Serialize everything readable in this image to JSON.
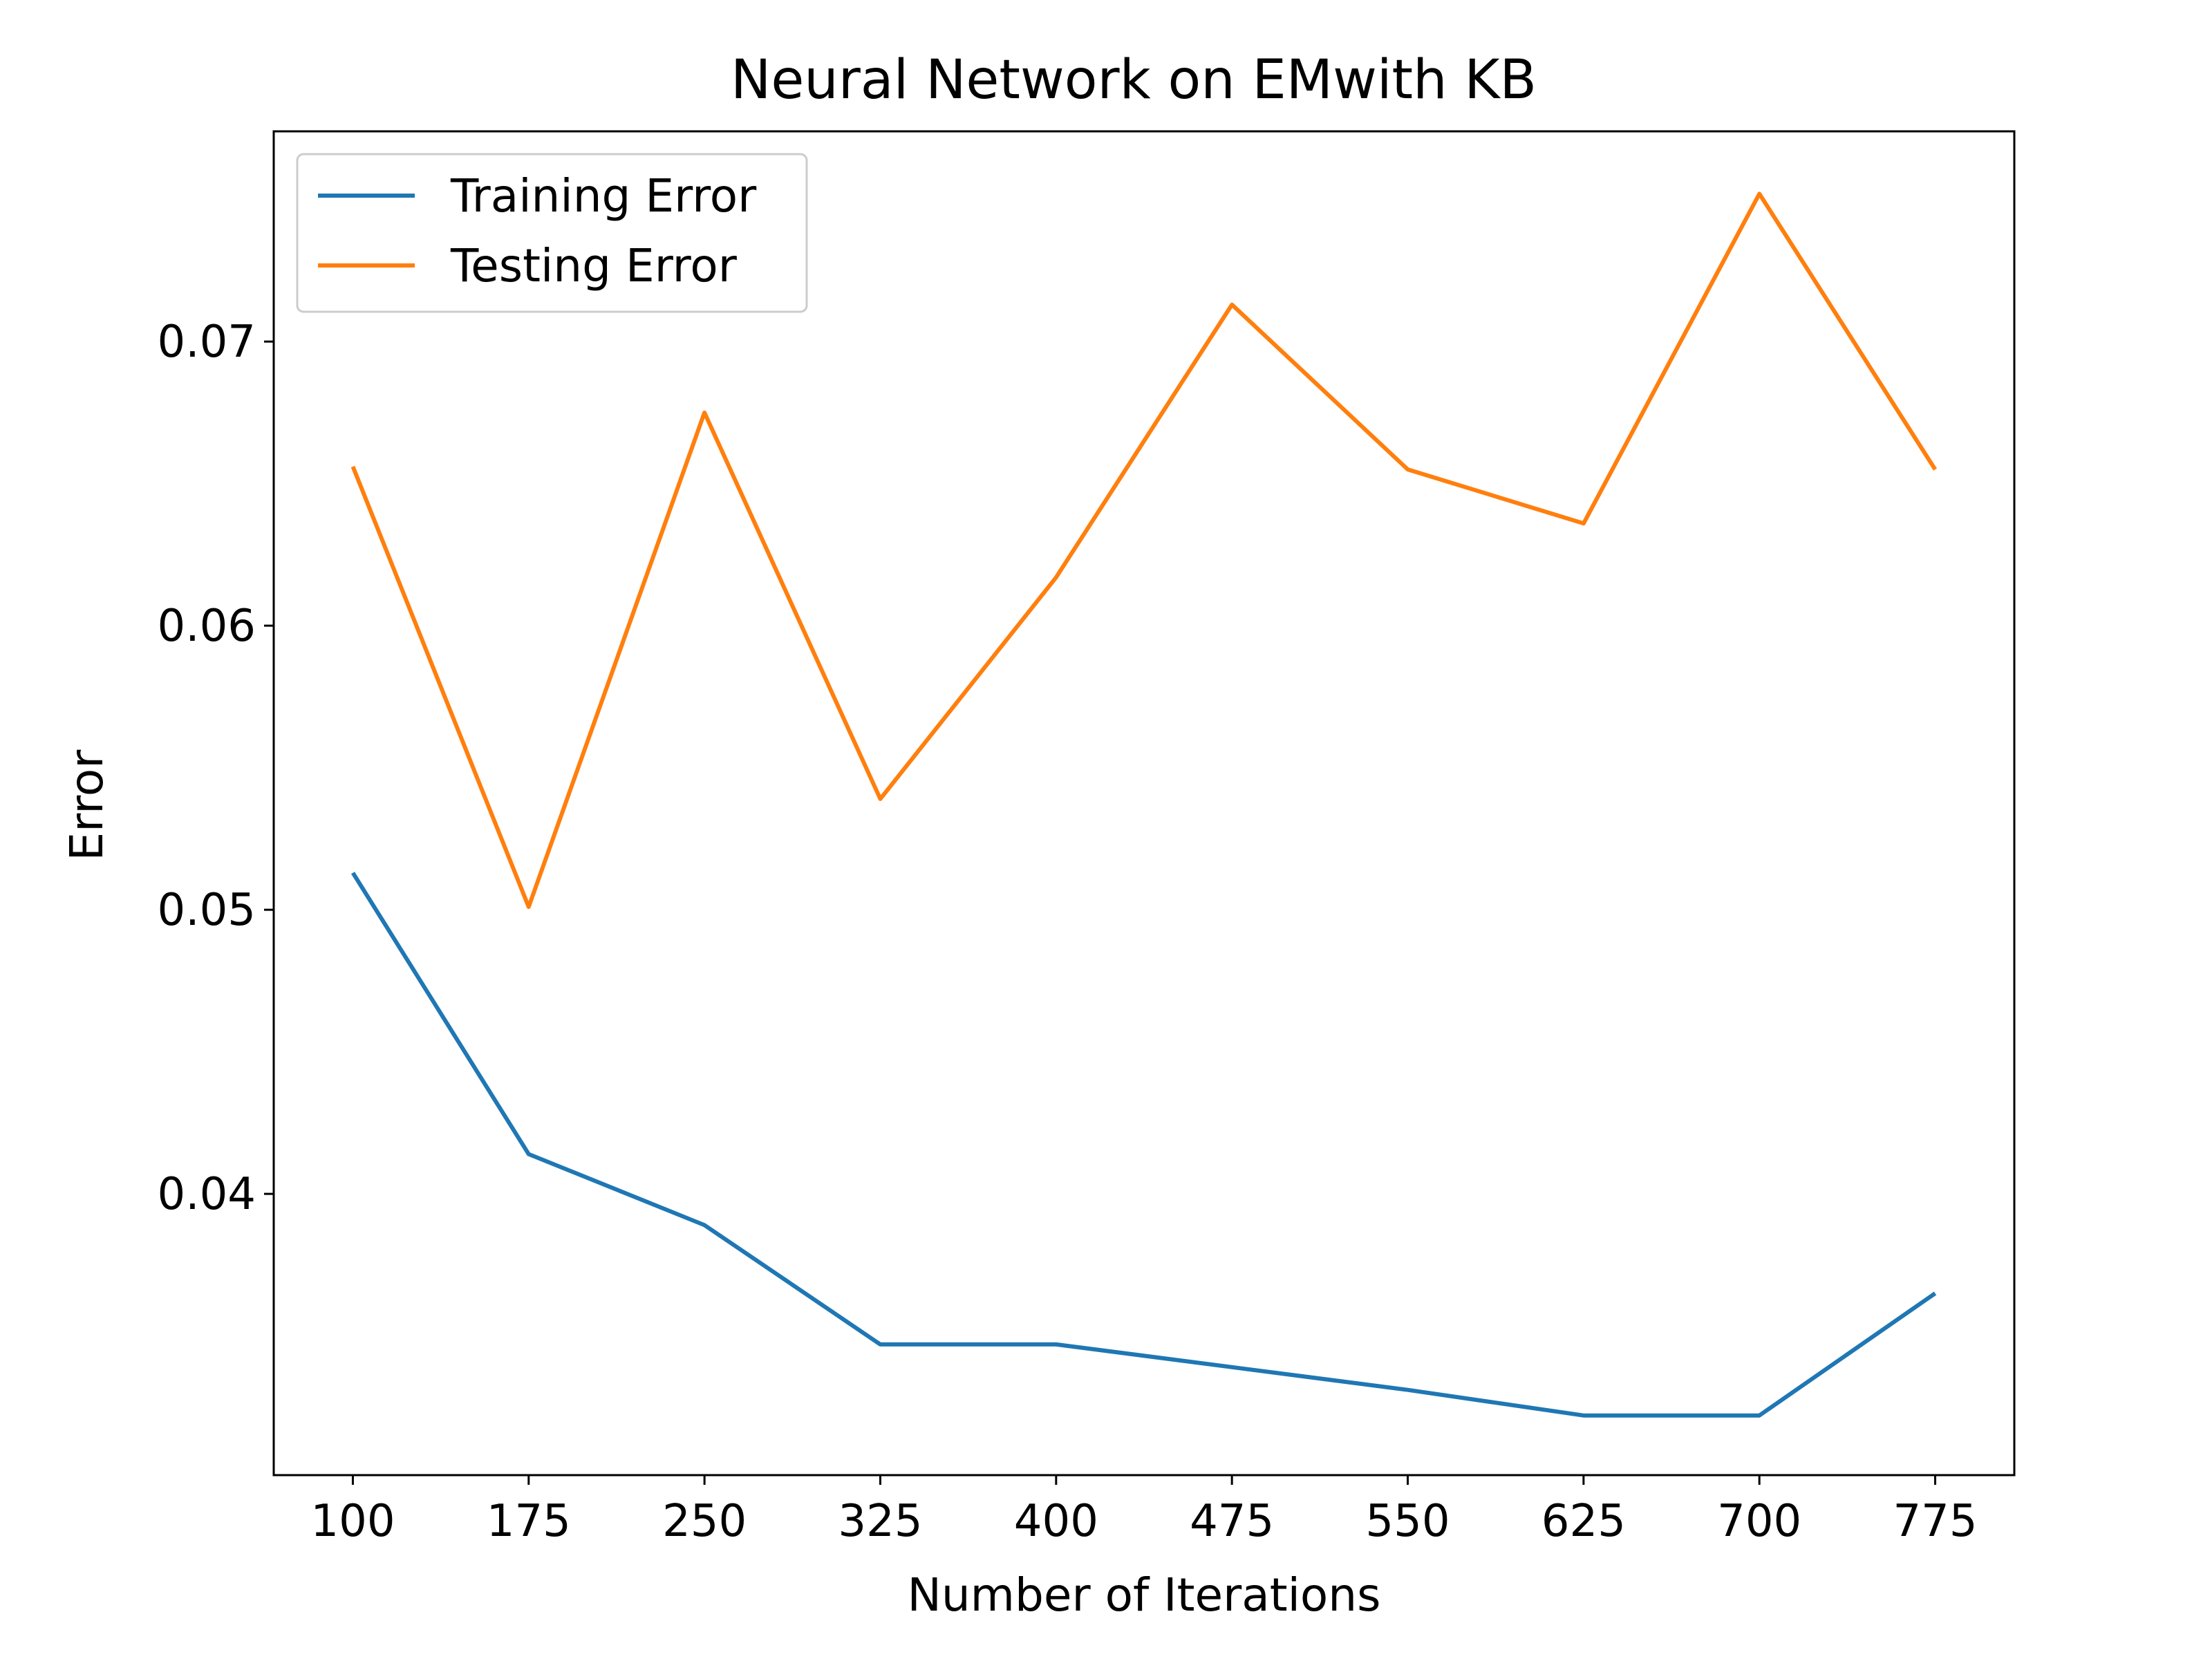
{
  "chart_data": {
    "type": "line",
    "title": "Neural Network on EMwith KB",
    "xlabel": "Number of Iterations",
    "ylabel": "Error",
    "x": [
      100,
      175,
      250,
      325,
      400,
      475,
      550,
      625,
      700,
      775
    ],
    "xticks": [
      "100",
      "175",
      "250",
      "325",
      "400",
      "475",
      "550",
      "625",
      "700",
      "775"
    ],
    "yticks": [
      {
        "value": 0.04,
        "label": "0.04"
      },
      {
        "value": 0.05,
        "label": "0.05"
      },
      {
        "value": 0.06,
        "label": "0.06"
      },
      {
        "value": 0.07,
        "label": "0.07"
      }
    ],
    "xlim": [
      66.25,
      808.75
    ],
    "ylim": [
      0.0301,
      0.0774
    ],
    "grid": false,
    "legend_position": "top-left",
    "series": [
      {
        "name": "Training Error",
        "color": "#1f77b4",
        "values": [
          0.0513,
          0.0414,
          0.0389,
          0.0347,
          0.0347,
          0.0339,
          0.0331,
          0.0322,
          0.0322,
          0.0365
        ]
      },
      {
        "name": "Testing Error",
        "color": "#ff7f0e",
        "values": [
          0.0656,
          0.0501,
          0.0675,
          0.0539,
          0.0617,
          0.0713,
          0.0655,
          0.0636,
          0.0752,
          0.0655
        ]
      }
    ]
  }
}
